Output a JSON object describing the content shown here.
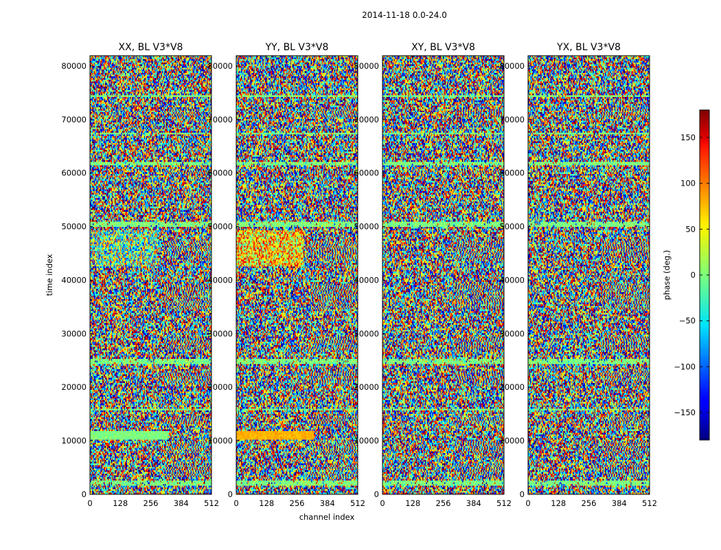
{
  "chart_data": {
    "type": "heatmap",
    "suptitle": "2014-11-18 0.0-24.0",
    "xlabel": "channel index",
    "ylabel": "time index",
    "xlim": [
      0,
      512
    ],
    "ylim": [
      0,
      81920
    ],
    "xticks": [
      0,
      128,
      256,
      384,
      512
    ],
    "yticks": [
      0,
      10000,
      20000,
      30000,
      40000,
      50000,
      60000,
      70000,
      80000
    ],
    "panels": [
      {
        "title": "XX, BL V3*V8"
      },
      {
        "title": "YY, BL V3*V8"
      },
      {
        "title": "XY, BL V3*V8"
      },
      {
        "title": "YX, BL V3*V8"
      }
    ],
    "colorbar": {
      "label": "phase (deg.)",
      "vmin": -180,
      "vmax": 180,
      "ticks": [
        150,
        100,
        50,
        0,
        -50,
        -100,
        -150
      ],
      "tick_labels": [
        "150",
        "100",
        "50",
        "0",
        "−50",
        "−100",
        "−150"
      ],
      "colormap": "jet"
    },
    "value_description": "Visibility phase, mostly noise-like across the full -180 to 180 range, with horizontal banded segments and fringe patterns at higher channels."
  }
}
